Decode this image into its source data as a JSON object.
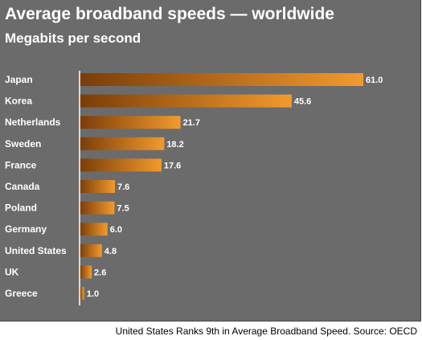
{
  "colors": {
    "background": "#6b6b6b",
    "bar_dark": "#7a3d08",
    "bar_light": "#f39a2e",
    "text": "#ffffff",
    "caption": "#000000"
  },
  "caption": "United States Ranks 9th in Average Broadband Speed. Source: OECD",
  "chart_data": {
    "type": "bar",
    "orientation": "horizontal",
    "title": "Average broadband speeds — worldwide",
    "subtitle": "Megabits per second",
    "categories": [
      "Japan",
      "Korea",
      "Netherlands",
      "Sweden",
      "France",
      "Canada",
      "Poland",
      "Germany",
      "United States",
      "UK",
      "Greece"
    ],
    "values": [
      61.0,
      45.6,
      21.7,
      18.2,
      17.6,
      7.6,
      7.5,
      6.0,
      4.8,
      2.6,
      1.0
    ],
    "value_labels": [
      "61.0",
      "45.6",
      "21.7",
      "18.2",
      "17.6",
      "7.6",
      "7.5",
      "6.0",
      "4.8",
      "2.6",
      "1.0"
    ],
    "xlim": [
      0,
      61.0
    ],
    "grid": false,
    "legend": "none"
  }
}
